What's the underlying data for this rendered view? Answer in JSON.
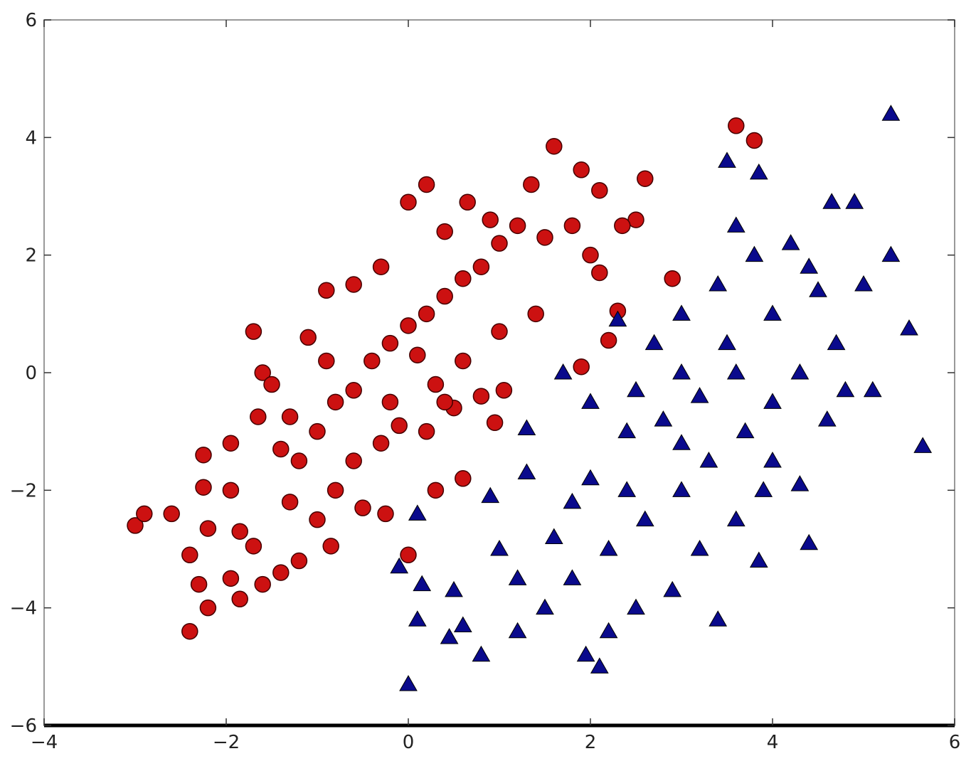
{
  "chart_data": {
    "type": "scatter",
    "xlim": [
      -4,
      6
    ],
    "ylim": [
      -6,
      6
    ],
    "xticks": [
      {
        "value": -4,
        "label": "−4"
      },
      {
        "value": -2,
        "label": "−2"
      },
      0,
      2,
      4,
      6
    ],
    "yticks": [
      {
        "value": -6,
        "label": "−6"
      },
      {
        "value": -4,
        "label": "−4"
      },
      {
        "value": -2,
        "label": "−2"
      },
      0,
      2,
      4,
      6
    ],
    "grid": false,
    "series": [
      {
        "color": "#cc1111",
        "marker": "circle",
        "x": [
          -3.0,
          -2.9,
          -2.6,
          -2.4,
          -2.4,
          -2.3,
          -2.2,
          -2.25,
          -2.25,
          -2.2,
          -1.95,
          -1.95,
          -1.95,
          -1.85,
          -1.85,
          -1.7,
          -1.7,
          -1.6,
          -1.4,
          -1.2,
          -0.85,
          0,
          1.6,
          1.9,
          2.6,
          3.6,
          3.8,
          2.9,
          2.3,
          2.2,
          1.9,
          0,
          0.2,
          0.65,
          1.35,
          2.1,
          2.5,
          2.35,
          -1.6,
          -1.5,
          -1.3,
          -1.65,
          -1.4,
          -1.2,
          -1.0,
          -0.8,
          -0.6,
          -0.4,
          -0.2,
          0,
          0.2,
          0.4,
          0.6,
          0.8,
          1.0,
          1.2,
          1.5,
          1.8,
          2.0,
          2.1,
          -0.2,
          0.3,
          0.6,
          1.0,
          1.4,
          -0.6,
          -0.3,
          0.2,
          0.5,
          0.8,
          1.05,
          0.95,
          -0.8,
          -0.5,
          -0.25,
          0.3,
          0.6,
          -1.0,
          -1.3,
          -0.9,
          -0.6,
          -0.3,
          0.4,
          0.9,
          -1.1,
          -0.9,
          0.1,
          0.4,
          -0.1
        ],
        "y": [
          -2.6,
          -2.4,
          -2.4,
          -3.1,
          -4.4,
          -3.6,
          -4.0,
          -1.4,
          -1.95,
          -2.65,
          -2.0,
          -3.5,
          -1.2,
          -2.7,
          -3.85,
          -2.95,
          0.7,
          -3.6,
          -3.4,
          -3.2,
          -2.95,
          -3.1,
          3.85,
          3.45,
          3.3,
          4.2,
          3.95,
          1.6,
          1.05,
          0.55,
          0.1,
          2.9,
          3.2,
          2.9,
          3.2,
          3.1,
          2.6,
          2.5,
          0,
          -0.2,
          -0.75,
          -0.75,
          -1.3,
          -1.5,
          -1.0,
          -0.5,
          -0.3,
          0.2,
          0.5,
          0.8,
          1.0,
          1.3,
          1.6,
          1.8,
          2.2,
          2.5,
          2.3,
          2.5,
          2.0,
          1.7,
          -0.5,
          -0.2,
          0.2,
          0.7,
          1.0,
          -1.5,
          -1.2,
          -1.0,
          -0.6,
          -0.4,
          -0.3,
          -0.85,
          -2.0,
          -2.3,
          -2.4,
          -2.0,
          -1.8,
          -2.5,
          -2.2,
          1.4,
          1.5,
          1.8,
          2.4,
          2.6,
          0.6,
          0.2,
          0.3,
          -0.5,
          -0.9
        ]
      },
      {
        "color": "#0a0a8c",
        "marker": "triangle",
        "x": [
          5.3,
          3.5,
          3.85,
          4.65,
          4.9,
          5.3,
          5.5,
          5.65,
          4.4,
          4.3,
          3.85,
          3.4,
          2.1,
          1.95,
          0,
          0.1,
          0.45,
          0.8,
          -0.1,
          0.15,
          0.5,
          0.1,
          0.9,
          1.3,
          1.3,
          1.7,
          2.0,
          2.5,
          3.0,
          3.5,
          4.0,
          4.5,
          5.0,
          4.7,
          4.3,
          4.0,
          3.7,
          3.3,
          3.0,
          2.6,
          2.2,
          1.8,
          1.5,
          1.2,
          2.5,
          2.9,
          3.2,
          3.6,
          3.9,
          4.0,
          2.4,
          2.8,
          3.2,
          2.0,
          1.6,
          2.4,
          3.4,
          3.8,
          4.2,
          3.6,
          3.0,
          2.7,
          2.3,
          4.8,
          5.1,
          4.6,
          1.0,
          1.2,
          0.6,
          1.8,
          2.2,
          3.0,
          3.6,
          4.4
        ],
        "y": [
          4.4,
          3.6,
          3.4,
          2.9,
          2.9,
          2.0,
          0.75,
          -1.25,
          -2.9,
          -1.9,
          -3.2,
          -4.2,
          -5.0,
          -4.8,
          -5.3,
          -4.2,
          -4.5,
          -4.8,
          -3.3,
          -3.6,
          -3.7,
          -2.4,
          -2.1,
          -1.7,
          -0.95,
          0,
          -0.5,
          -0.3,
          0,
          0.5,
          1.0,
          1.4,
          1.5,
          0.5,
          0,
          -0.5,
          -1.0,
          -1.5,
          -2.0,
          -2.5,
          -3.0,
          -3.5,
          -4.0,
          -4.4,
          -4.0,
          -3.7,
          -3.0,
          -2.5,
          -2.0,
          -1.5,
          -1.0,
          -0.8,
          -0.4,
          -1.8,
          -2.8,
          -2.0,
          1.5,
          2.0,
          2.2,
          2.5,
          1.0,
          0.5,
          0.9,
          -0.3,
          -0.3,
          -0.8,
          -3.0,
          -3.5,
          -4.3,
          -2.2,
          -4.4,
          -1.2,
          0,
          1.8
        ]
      }
    ]
  }
}
